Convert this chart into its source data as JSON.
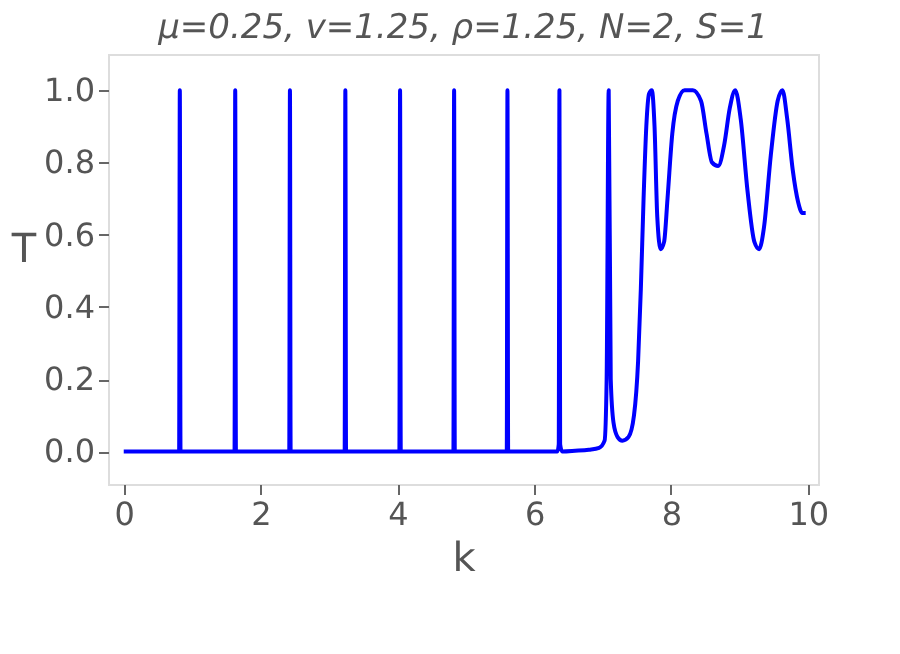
{
  "chart_data": {
    "type": "line",
    "title": "μ=0.25, v=1.25, ρ=1.25, N=2, S=1",
    "xlabel": "k",
    "ylabel": "T",
    "x": [
      0,
      0.8,
      0.81,
      0.82,
      0.83,
      0.84,
      1.61,
      1.62,
      1.63,
      1.64,
      1.65,
      2.41,
      2.42,
      2.43,
      2.44,
      2.45,
      3.22,
      3.23,
      3.24,
      3.25,
      3.26,
      4.02,
      4.03,
      4.04,
      4.05,
      4.06,
      4.81,
      4.82,
      4.83,
      4.84,
      4.85,
      5.59,
      5.6,
      5.61,
      5.62,
      5.63,
      6.34,
      6.36,
      6.37,
      6.38,
      6.41,
      6.6,
      6.8,
      6.95,
      7.03,
      7.06,
      7.09,
      7.12,
      7.16,
      7.22,
      7.29,
      7.38,
      7.46,
      7.52,
      7.56,
      7.6,
      7.64,
      7.68,
      7.72,
      7.76,
      7.8,
      7.85,
      7.9,
      7.95,
      8.02,
      8.1,
      8.2,
      8.32,
      8.44,
      8.52,
      8.6,
      8.69,
      8.78,
      8.86,
      8.94,
      9.02,
      9.12,
      9.22,
      9.29,
      9.36,
      9.46,
      9.56,
      9.63,
      9.7,
      9.78,
      9.86,
      9.92,
      9.97
    ],
    "values": [
      0,
      0,
      0,
      1,
      0,
      0,
      0,
      0,
      1,
      0,
      0,
      0,
      0,
      1,
      0,
      0,
      0,
      0,
      1,
      0,
      0,
      0,
      0,
      1,
      0,
      0,
      0,
      0,
      1,
      0,
      0,
      0,
      0,
      1,
      0,
      0,
      0,
      0.02,
      1,
      0.02,
      0,
      0.002,
      0.005,
      0.01,
      0.03,
      0.2,
      1,
      0.2,
      0.08,
      0.04,
      0.03,
      0.04,
      0.1,
      0.25,
      0.45,
      0.7,
      0.9,
      0.99,
      1,
      0.9,
      0.65,
      0.56,
      0.58,
      0.7,
      0.88,
      0.97,
      1,
      1,
      0.97,
      0.88,
      0.8,
      0.79,
      0.85,
      0.95,
      1,
      0.92,
      0.72,
      0.58,
      0.56,
      0.62,
      0.82,
      0.97,
      1,
      0.92,
      0.78,
      0.69,
      0.66,
      0.66
    ],
    "color": "#0000ff",
    "xlim": [
      -0.23,
      10.15
    ],
    "ylim": [
      -0.09,
      1.1
    ],
    "xticks": [
      0,
      2,
      4,
      6,
      8,
      10
    ],
    "yticks": [
      {
        "value": 0,
        "label": "0.0"
      },
      {
        "value": 0.2,
        "label": "0.2"
      },
      {
        "value": 0.4,
        "label": "0.4"
      },
      {
        "value": 0.6,
        "label": "0.6"
      },
      {
        "value": 0.8,
        "label": "0.8"
      },
      {
        "value": 1,
        "label": "1.0"
      }
    ],
    "grid": false,
    "line_style": "solid",
    "marker": "none"
  }
}
